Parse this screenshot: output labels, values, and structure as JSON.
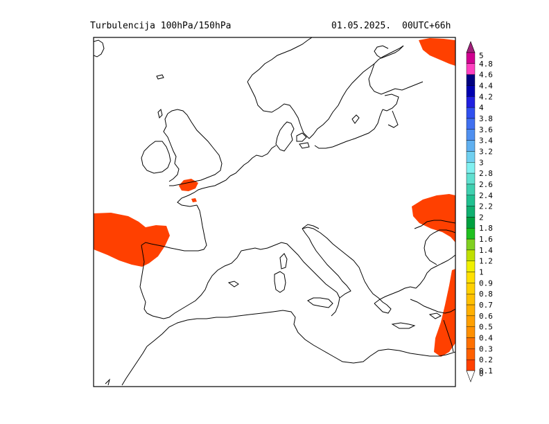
{
  "header": {
    "title": "Turbulencija 100hPa/150hPa",
    "date": "01.05.2025.",
    "run": "00UTC+66h"
  },
  "map": {
    "region": "Europe",
    "land_outline_color": "#000000",
    "turbulence_fill_color": "#ff4000"
  },
  "legend": {
    "levels": [
      "5",
      "4.8",
      "4.6",
      "4.4",
      "4.2",
      "4",
      "3.8",
      "3.6",
      "3.4",
      "3.2",
      "3",
      "2.8",
      "2.6",
      "2.4",
      "2.2",
      "2",
      "1.8",
      "1.6",
      "1.4",
      "1.2",
      "1",
      "0.9",
      "0.8",
      "0.7",
      "0.6",
      "0.5",
      "0.4",
      "0.3",
      "0.2",
      "0.1",
      "0"
    ],
    "colors": [
      "#d00090",
      "#ff40c0",
      "#000080",
      "#0000b0",
      "#2020e0",
      "#3050f0",
      "#4070f0",
      "#5090f0",
      "#60b0f0",
      "#70d0f0",
      "#80f0f0",
      "#60e0d0",
      "#40d0b0",
      "#20c090",
      "#10b070",
      "#00a040",
      "#20c020",
      "#80d020",
      "#c0e000",
      "#f0f000",
      "#ffe000",
      "#ffd000",
      "#ffc000",
      "#ffb000",
      "#ffa000",
      "#ff9000",
      "#ff7000",
      "#ff6000",
      "#ff4000"
    ]
  }
}
